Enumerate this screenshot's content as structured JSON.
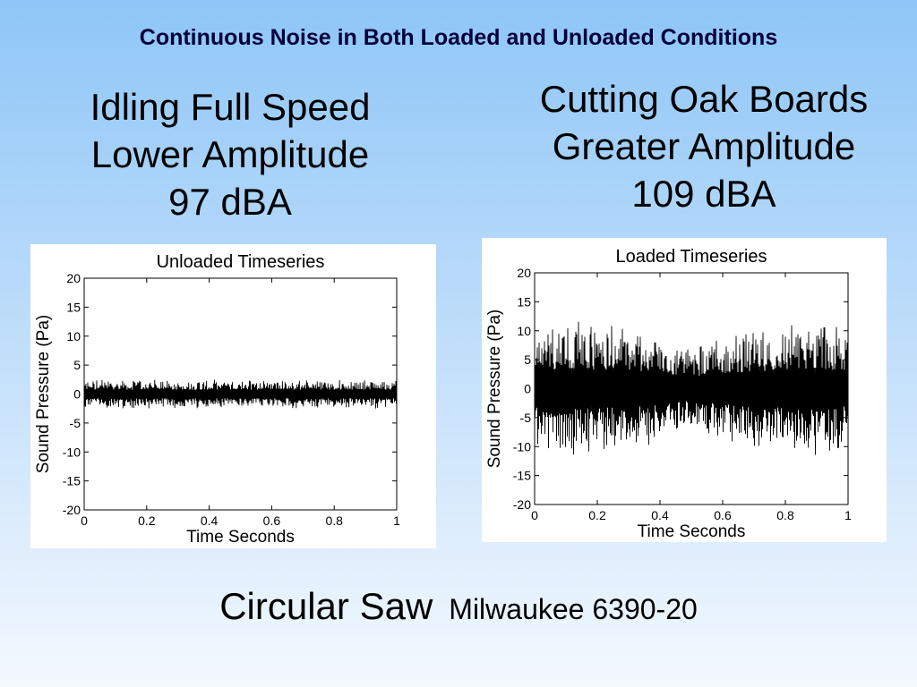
{
  "slide": {
    "title": "Continuous Noise in Both Loaded and Unloaded Conditions",
    "left_caption": [
      "Idling Full Speed",
      "Lower Amplitude",
      "97 dBA"
    ],
    "right_caption": [
      "Cutting Oak Boards",
      "Greater Amplitude",
      "109 dBA"
    ],
    "footer_main": "Circular Saw",
    "footer_sub": "Milwaukee 6390-20"
  },
  "chart_data": [
    {
      "type": "line",
      "title": "Unloaded Timeseries",
      "xlabel": "Time Seconds",
      "ylabel": "Sound Pressure (Pa)",
      "xlim": [
        0,
        1
      ],
      "ylim": [
        -20,
        20
      ],
      "xticks": [
        0,
        0.2,
        0.4,
        0.6,
        0.8,
        1
      ],
      "xtick_labels": [
        "0",
        "0.2",
        "0.4",
        "0.6",
        "0.8",
        "1"
      ],
      "yticks": [
        20,
        15,
        10,
        5,
        0,
        -5,
        -10,
        -15,
        -20
      ],
      "ytick_labels": [
        "20",
        "15",
        "10",
        "5",
        "0",
        "-5",
        "-10",
        "-15",
        "-20"
      ],
      "grid": false,
      "line_color": "#000000",
      "envelope": {
        "x": [
          0,
          0.1,
          0.2,
          0.3,
          0.4,
          0.5,
          0.6,
          0.7,
          0.8,
          0.9,
          1
        ],
        "max": [
          2.5,
          2.5,
          2.5,
          2.5,
          2.5,
          2.5,
          2.5,
          2.5,
          2.5,
          2.5,
          2.5
        ],
        "min": [
          -2.5,
          -2.5,
          -2.5,
          -2.5,
          -2.5,
          -2.5,
          -2.5,
          -2.5,
          -2.5,
          -2.5,
          -2.5
        ]
      }
    },
    {
      "type": "line",
      "title": "Loaded Timeseries",
      "xlabel": "Time Seconds",
      "ylabel": "Sound Pressure (Pa)",
      "xlim": [
        0,
        1
      ],
      "ylim": [
        -20,
        20
      ],
      "xticks": [
        0,
        0.2,
        0.4,
        0.6,
        0.8,
        1
      ],
      "xtick_labels": [
        "0",
        "0.2",
        "0.4",
        "0.6",
        "0.8",
        "1"
      ],
      "yticks": [
        20,
        15,
        10,
        5,
        0,
        -5,
        -10,
        -15,
        -20
      ],
      "ytick_labels": [
        "20",
        "15",
        "10",
        "5",
        "0",
        "-5",
        "-10",
        "-15",
        "-20"
      ],
      "grid": false,
      "line_color": "#000000",
      "envelope": {
        "x": [
          0,
          0.1,
          0.2,
          0.3,
          0.4,
          0.5,
          0.6,
          0.7,
          0.8,
          0.9,
          1
        ],
        "max": [
          10,
          12,
          11,
          11,
          9,
          7,
          9,
          10,
          11,
          12,
          10
        ],
        "min": [
          -11,
          -12,
          -11,
          -11,
          -9,
          -7,
          -9,
          -10,
          -11,
          -12,
          -10
        ]
      }
    }
  ]
}
